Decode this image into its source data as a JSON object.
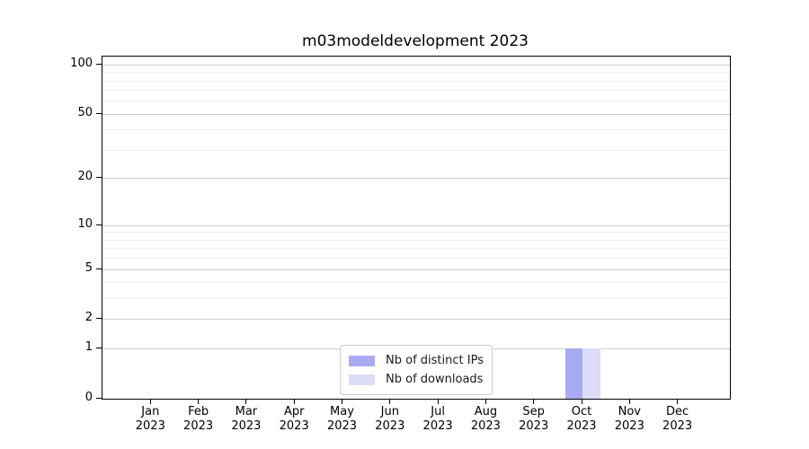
{
  "chart_data": {
    "type": "bar",
    "title": "m03modeldevelopment 2023",
    "categories": [
      {
        "line1": "Jan",
        "line2": "2023"
      },
      {
        "line1": "Feb",
        "line2": "2023"
      },
      {
        "line1": "Mar",
        "line2": "2023"
      },
      {
        "line1": "Apr",
        "line2": "2023"
      },
      {
        "line1": "May",
        "line2": "2023"
      },
      {
        "line1": "Jun",
        "line2": "2023"
      },
      {
        "line1": "Jul",
        "line2": "2023"
      },
      {
        "line1": "Aug",
        "line2": "2023"
      },
      {
        "line1": "Sep",
        "line2": "2023"
      },
      {
        "line1": "Oct",
        "line2": "2023"
      },
      {
        "line1": "Nov",
        "line2": "2023"
      },
      {
        "line1": "Dec",
        "line2": "2023"
      }
    ],
    "series": [
      {
        "name": "Nb of distinct IPs",
        "color": "#aaaaf2",
        "values": [
          0,
          0,
          0,
          0,
          0,
          0,
          0,
          0,
          0,
          1,
          0,
          0
        ]
      },
      {
        "name": "Nb of downloads",
        "color": "#dcdcf8",
        "values": [
          0,
          0,
          0,
          0,
          0,
          0,
          0,
          0,
          0,
          1,
          0,
          0
        ]
      }
    ],
    "y_axis": {
      "scale": "log1p",
      "max": 111.5,
      "ticks": [
        {
          "value": 0,
          "label": "0"
        },
        {
          "value": 1,
          "label": "1"
        },
        {
          "value": 2,
          "label": "2"
        },
        {
          "value": 5,
          "label": "5"
        },
        {
          "value": 10,
          "label": "10"
        },
        {
          "value": 20,
          "label": "20"
        },
        {
          "value": 50,
          "label": "50"
        },
        {
          "value": 100,
          "label": "100"
        }
      ],
      "minor_ticks": [
        3,
        4,
        6,
        7,
        8,
        9,
        30,
        40,
        60,
        70,
        80,
        90
      ]
    },
    "x_axis": {
      "gridlines": false
    },
    "grid": {
      "major_color": "#cccccc",
      "minor_color": "#efefef"
    },
    "legend": {
      "position": "lower center"
    }
  }
}
